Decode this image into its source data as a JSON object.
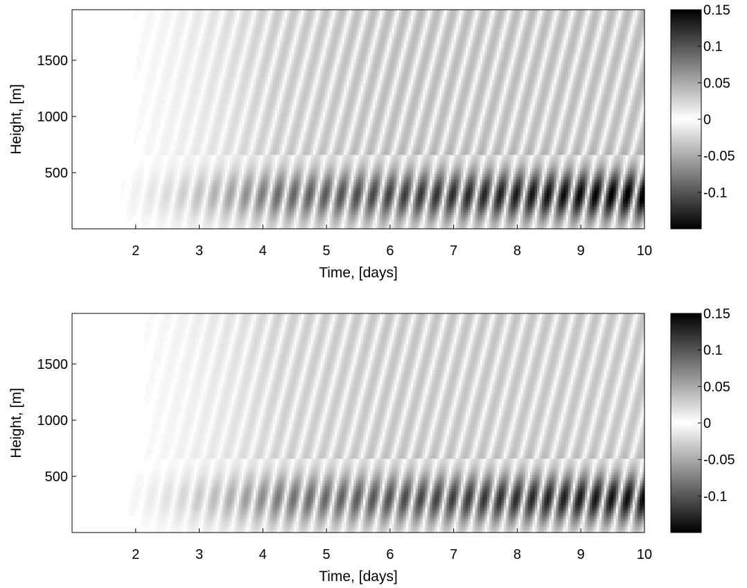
{
  "chart_data": [
    {
      "type": "heatmap",
      "title": "",
      "xlabel": "Time, [days]",
      "ylabel": "Height, [m]",
      "xlim": [
        1.0,
        10.0
      ],
      "ylim": [
        0,
        1950
      ],
      "x_ticks": [
        2,
        3,
        4,
        5,
        6,
        7,
        8,
        9,
        10
      ],
      "y_ticks": [
        500,
        1000,
        1500
      ],
      "colorbar": {
        "range": [
          -0.15,
          0.15
        ],
        "ticks": [
          0.15,
          0.1,
          0.05,
          0,
          -0.05,
          -0.1
        ],
        "tick_labels": [
          "0.15",
          "0.1",
          "0.05",
          "0",
          "-0.05",
          "-0.1"
        ],
        "colormap": "grayscale: white at 0, black at both extremes"
      },
      "wave_field": {
        "onset_day": 1.6,
        "period_days": 0.5,
        "layer_top_m": 650,
        "layer_strength_at_day_10": 0.14,
        "upper_strength": 0.04
      }
    },
    {
      "type": "heatmap",
      "title": "",
      "xlabel": "Time, [days]",
      "ylabel": "Height, [m]",
      "xlim": [
        1.0,
        10.0
      ],
      "ylim": [
        0,
        1950
      ],
      "x_ticks": [
        2,
        3,
        4,
        5,
        6,
        7,
        8,
        9,
        10
      ],
      "y_ticks": [
        500,
        1000,
        1500
      ],
      "colorbar": {
        "range": [
          -0.15,
          0.15
        ],
        "ticks": [
          0.15,
          0.1,
          0.05,
          0,
          -0.05,
          -0.1
        ],
        "tick_labels": [
          "0.15",
          "0.1",
          "0.05",
          "0",
          "-0.05",
          "-0.1"
        ],
        "colormap": "grayscale: white at 0, black at both extremes"
      },
      "wave_field": {
        "onset_day": 1.7,
        "period_days": 0.5,
        "layer_top_m": 650,
        "layer_strength_at_day_10": 0.13,
        "upper_strength": 0.035
      }
    }
  ]
}
